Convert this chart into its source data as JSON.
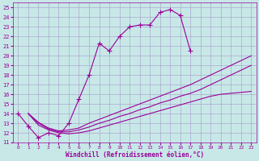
{
  "xlabel": "Windchill (Refroidissement éolien,°C)",
  "ylabel": "",
  "xlim": [
    -0.5,
    23.5
  ],
  "ylim": [
    11,
    25.5
  ],
  "yticks": [
    11,
    12,
    13,
    14,
    15,
    16,
    17,
    18,
    19,
    20,
    21,
    22,
    23,
    24,
    25
  ],
  "xticks": [
    0,
    1,
    2,
    3,
    4,
    5,
    6,
    7,
    8,
    9,
    10,
    11,
    12,
    13,
    14,
    15,
    16,
    17,
    18,
    19,
    20,
    21,
    22,
    23
  ],
  "bg_color": "#c8e8e8",
  "grid_color": "#aaaacc",
  "line_color": "#990099",
  "main_curve": {
    "x": [
      0,
      1,
      2,
      3,
      4,
      5,
      6,
      7,
      8,
      9,
      10,
      11,
      12,
      13,
      14,
      15,
      16,
      17
    ],
    "y": [
      14.0,
      12.7,
      11.5,
      12.0,
      11.7,
      13.0,
      15.5,
      18.0,
      21.3,
      20.5,
      22.0,
      23.0,
      23.2,
      23.2,
      24.5,
      24.8,
      24.2,
      20.5
    ]
  },
  "fan_curves": [
    {
      "x": [
        1,
        2,
        3,
        4,
        5,
        6,
        7,
        8,
        9,
        10,
        11,
        12,
        13,
        14,
        15,
        16,
        17,
        18,
        19,
        20,
        21,
        22,
        23
      ],
      "y": [
        14.0,
        13.1,
        12.5,
        12.2,
        12.3,
        12.5,
        13.0,
        13.4,
        13.8,
        14.2,
        14.6,
        15.0,
        15.4,
        15.8,
        16.2,
        16.6,
        17.0,
        17.5,
        18.0,
        18.5,
        19.0,
        19.5,
        20.0
      ]
    },
    {
      "x": [
        1,
        2,
        3,
        4,
        5,
        6,
        7,
        8,
        9,
        10,
        11,
        12,
        13,
        14,
        15,
        16,
        17,
        18,
        19,
        20,
        21,
        22,
        23
      ],
      "y": [
        14.0,
        13.0,
        12.4,
        12.1,
        12.1,
        12.3,
        12.6,
        13.0,
        13.3,
        13.7,
        14.0,
        14.4,
        14.7,
        15.1,
        15.4,
        15.8,
        16.1,
        16.5,
        17.0,
        17.5,
        18.0,
        18.5,
        19.0
      ]
    },
    {
      "x": [
        1,
        2,
        3,
        4,
        5,
        6,
        7,
        8,
        9,
        10,
        11,
        12,
        13,
        14,
        15,
        16,
        17,
        18,
        19,
        20,
        21,
        22,
        23
      ],
      "y": [
        14.0,
        12.8,
        12.3,
        12.0,
        11.9,
        12.0,
        12.2,
        12.5,
        12.8,
        13.1,
        13.4,
        13.7,
        14.0,
        14.3,
        14.6,
        14.9,
        15.2,
        15.5,
        15.8,
        16.0,
        16.1,
        16.2,
        16.3
      ]
    }
  ]
}
